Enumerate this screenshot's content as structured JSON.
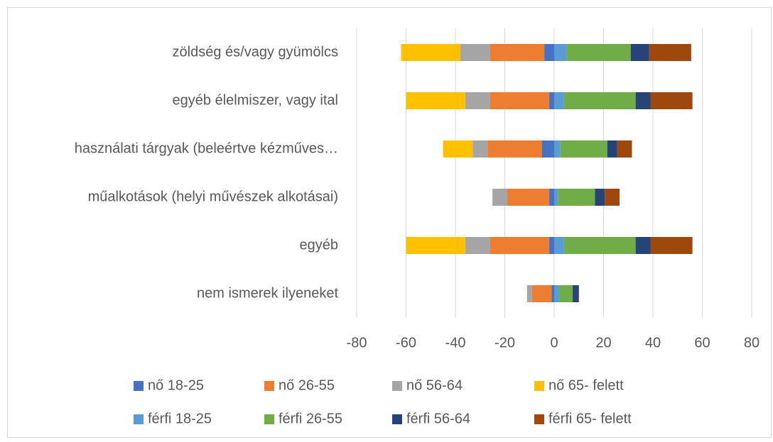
{
  "chart_data": {
    "type": "bar",
    "orientation": "horizontal",
    "stacked": "diverging",
    "categories": [
      "zöldség és/vagy gyümölcs",
      "egyéb élelmiszer, vagy ital",
      "használati tárgyak (beleértve kézműves…",
      "műalkotások (helyi művészek alkotásai)",
      "egyéb",
      "nem ismerek ilyeneket"
    ],
    "series": [
      {
        "name": "nő 18-25",
        "color": "#4472c4",
        "values": [
          -4,
          -2,
          -5,
          -2,
          -2,
          -1
        ]
      },
      {
        "name": "nő 26-55",
        "color": "#ed7d31",
        "values": [
          -22,
          -24,
          -22,
          -17,
          -24,
          -8
        ]
      },
      {
        "name": "nő 56-64",
        "color": "#a5a5a5",
        "values": [
          -12,
          -10,
          -6,
          -6,
          -10,
          -2
        ]
      },
      {
        "name": "nő 65- felett",
        "color": "#ffc000",
        "values": [
          -24,
          -24,
          -12,
          0,
          -24,
          0
        ]
      },
      {
        "name": "férfi 18-25",
        "color": "#5b9bd5",
        "values": [
          5,
          4,
          2.5,
          1.5,
          4,
          2
        ]
      },
      {
        "name": "férfi 26-55",
        "color": "#70ad47",
        "values": [
          26,
          29,
          19,
          15,
          29,
          5.5
        ]
      },
      {
        "name": "férfi 56-64",
        "color": "#264478",
        "values": [
          7.5,
          6,
          4,
          4,
          6,
          2.5
        ]
      },
      {
        "name": "férfi 65- felett",
        "color": "#9e480e",
        "values": [
          17,
          17,
          6,
          6,
          17,
          0
        ]
      }
    ],
    "xlim": [
      -80,
      80
    ],
    "xticks": [
      -80,
      -60,
      -40,
      -20,
      0,
      20,
      40,
      60,
      80
    ],
    "grid": true,
    "legend": "bottom"
  }
}
